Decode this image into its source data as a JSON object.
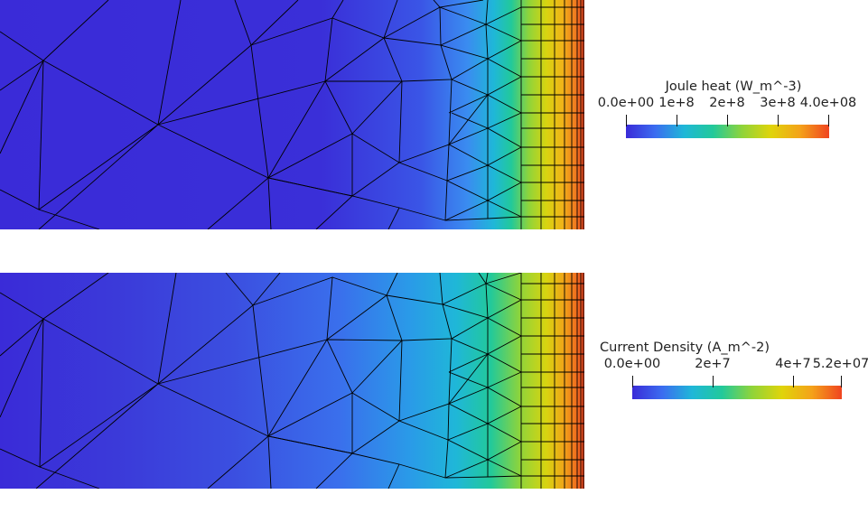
{
  "panels": [
    {
      "id": "joule",
      "colorbar": {
        "title": "Joule heat (W_m^-3)",
        "range": [
          0,
          400000000
        ],
        "ticks": [
          {
            "value": 0,
            "label": "0.0e+00"
          },
          {
            "value": 100000000,
            "label": "1e+8"
          },
          {
            "value": 200000000,
            "label": "2e+8"
          },
          {
            "value": 300000000,
            "label": "3e+8"
          },
          {
            "value": 400000000,
            "label": "4.0e+08"
          }
        ]
      }
    },
    {
      "id": "current",
      "colorbar": {
        "title": "Current Density (A_m^-2)",
        "range": [
          0,
          52000000
        ],
        "ticks": [
          {
            "value": 0,
            "label": "0.0e+00"
          },
          {
            "value": 20000000,
            "label": "2e+7"
          },
          {
            "value": 40000000,
            "label": "4e+7"
          },
          {
            "value": 52000000,
            "label": "5.2e+07"
          }
        ]
      }
    }
  ],
  "colormap": [
    "#3a2bd8",
    "#3b6cf0",
    "#1fb7d8",
    "#22c99a",
    "#8fd43a",
    "#e0d40a",
    "#f4a21a",
    "#f04420"
  ]
}
